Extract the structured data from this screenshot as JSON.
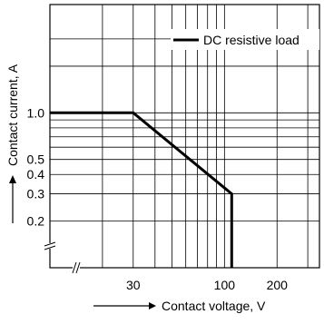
{
  "chart_data": {
    "type": "line",
    "title": "",
    "xlabel": "Contact voltage, V",
    "ylabel": "Contact current, A",
    "x_scale": "log",
    "y_scale": "log",
    "x_axis_break": true,
    "y_axis_break": true,
    "xlim": [
      10,
      350
    ],
    "ylim": [
      0.1,
      5
    ],
    "grid": true,
    "legend": "top-right",
    "xticks": [
      {
        "value": 30,
        "label": "30"
      },
      {
        "value": 100,
        "label": "100"
      },
      {
        "value": 200,
        "label": "200"
      }
    ],
    "yticks": [
      {
        "value": 1.0,
        "label": "1.0"
      },
      {
        "value": 0.5,
        "label": "0.5"
      },
      {
        "value": 0.4,
        "label": "0.4"
      },
      {
        "value": 0.3,
        "label": "0.3"
      },
      {
        "value": 0.2,
        "label": "0.2"
      }
    ],
    "x_gridlines": [
      20,
      30,
      40,
      50,
      60,
      70,
      80,
      90,
      100,
      200,
      300
    ],
    "y_gridlines": [
      0.2,
      0.3,
      0.4,
      0.5,
      0.6,
      0.7,
      0.8,
      0.9,
      1,
      2,
      3
    ],
    "series": [
      {
        "name": "DC resistive load",
        "color": "#000000",
        "x": [
          10,
          30,
          110,
          110
        ],
        "y": [
          1.0,
          1.0,
          0.3,
          0.1
        ]
      }
    ]
  }
}
